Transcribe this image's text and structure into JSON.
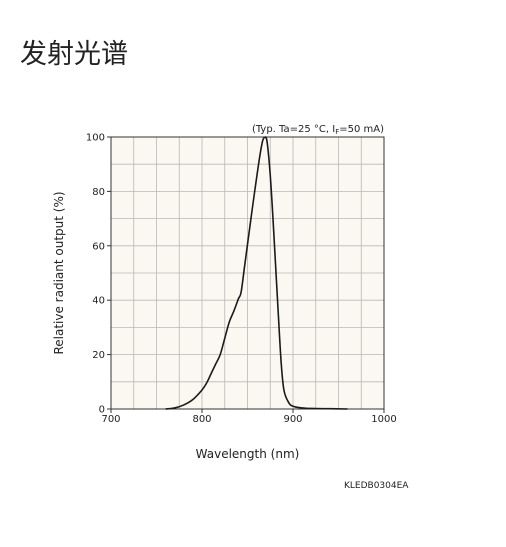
{
  "page": {
    "heading": "发射光谱",
    "figure_code": "KLEDB0304EA"
  },
  "chart_data": {
    "type": "line",
    "title": "",
    "conditions": "(Typ. Ta=25 °C, I",
    "conditions_sub": "F",
    "conditions_tail": "=50 mA)",
    "xlabel": "Wavelength (nm)",
    "ylabel": "Relative radiant output (%)",
    "xlim": [
      700,
      1000
    ],
    "ylim": [
      0,
      100
    ],
    "xticks": [
      700,
      800,
      900,
      1000
    ],
    "yticks": [
      0,
      20,
      40,
      60,
      80,
      100
    ],
    "x_grid_step": 25,
    "y_grid_step": 10,
    "grid": true,
    "colors": {
      "plot_background": "#faf8f0",
      "grid": "#b8b8b8",
      "frame": "#333333",
      "curve": "#1a1a1a"
    },
    "series": [
      {
        "x": [
          760,
          770,
          780,
          790,
          800,
          805,
          810,
          815,
          820,
          825,
          830,
          835,
          840,
          843,
          847,
          851,
          855,
          860,
          864,
          867,
          870,
          872,
          875,
          878,
          881,
          884,
          887,
          890,
          895,
          900,
          910,
          920,
          940,
          960
        ],
        "values": [
          0,
          0.4,
          1.5,
          3.5,
          7,
          9.5,
          13,
          16.5,
          20,
          26,
          32,
          36,
          40.5,
          43,
          53,
          63,
          73,
          85,
          94,
          99,
          100,
          97,
          86,
          70,
          52,
          34,
          17,
          7,
          2.5,
          1,
          0.4,
          0.2,
          0.1,
          0
        ]
      }
    ]
  }
}
